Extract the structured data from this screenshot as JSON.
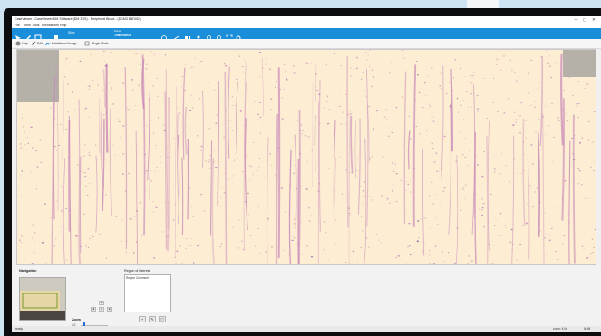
{
  "window": {
    "title": "CaseViewer - CaseViewer DM Software (DM 3DS) - Peripheral Blood - (DDM3 B4D0D)"
  },
  "menu": [
    "File",
    "View",
    "Tools",
    "Annotations",
    "Help"
  ],
  "ribbon": {
    "tab_label": "Slide",
    "field_label": "Zoom",
    "field_value": "7/BOS004"
  },
  "toolbar": {
    "item1": "Help",
    "item2": "Edit",
    "item3": "Established Image",
    "item4": "Single Mode"
  },
  "navigation": {
    "title": "Navigation",
    "pad": {
      "up": "▲",
      "left": "◄",
      "center": "●",
      "right": "►",
      "down": "▼"
    },
    "zoom_label": "Zoom",
    "zoom_value": "4.0",
    "zoom_level": 0.12
  },
  "roi": {
    "title": "Region of Interest",
    "header": "Region     Comment",
    "add_icon": "add-icon",
    "edit_icon": "edit-icon",
    "delete_icon": "delete-icon"
  },
  "status": {
    "left": "ready",
    "zoom": "zoom: 4.0x",
    "right": "NUM"
  },
  "colors": {
    "accent": "#1a8ed8",
    "tissue_bg": "#fdeed3",
    "stain": "#c888b8"
  }
}
